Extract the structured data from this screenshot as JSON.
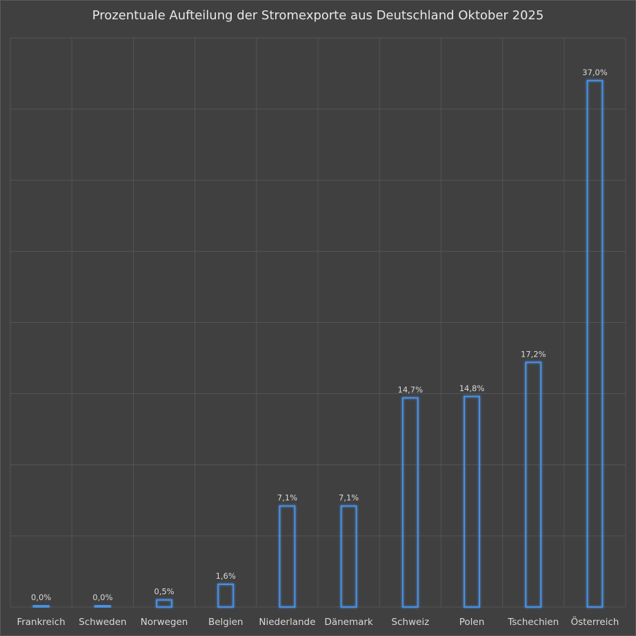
{
  "chart_data": {
    "type": "bar",
    "title": "Prozentuale Aufteilung der Stromexporte aus Deutschland Oktober 2025",
    "xlabel": "",
    "ylabel": "",
    "categories": [
      "Frankreich",
      "Schweden",
      "Norwegen",
      "Belgien",
      "Niederlande",
      "Dänemark",
      "Schweiz",
      "Polen",
      "Tschechien",
      "Österreich"
    ],
    "values": [
      0.0,
      0.0,
      0.5,
      1.6,
      7.1,
      7.1,
      14.7,
      14.8,
      17.2,
      37.0
    ],
    "value_labels": [
      "0,0%",
      "0,0%",
      "0,5%",
      "1,6%",
      "7,1%",
      "7,1%",
      "14,7%",
      "14,8%",
      "17,2%",
      "37,0%"
    ],
    "ylim": [
      0,
      40
    ],
    "grid": true,
    "legend": "none",
    "colors": {
      "background": "#404040",
      "bar_outline": "#4a90e2",
      "grid": "#555555",
      "text": "#d9d9d9"
    }
  }
}
